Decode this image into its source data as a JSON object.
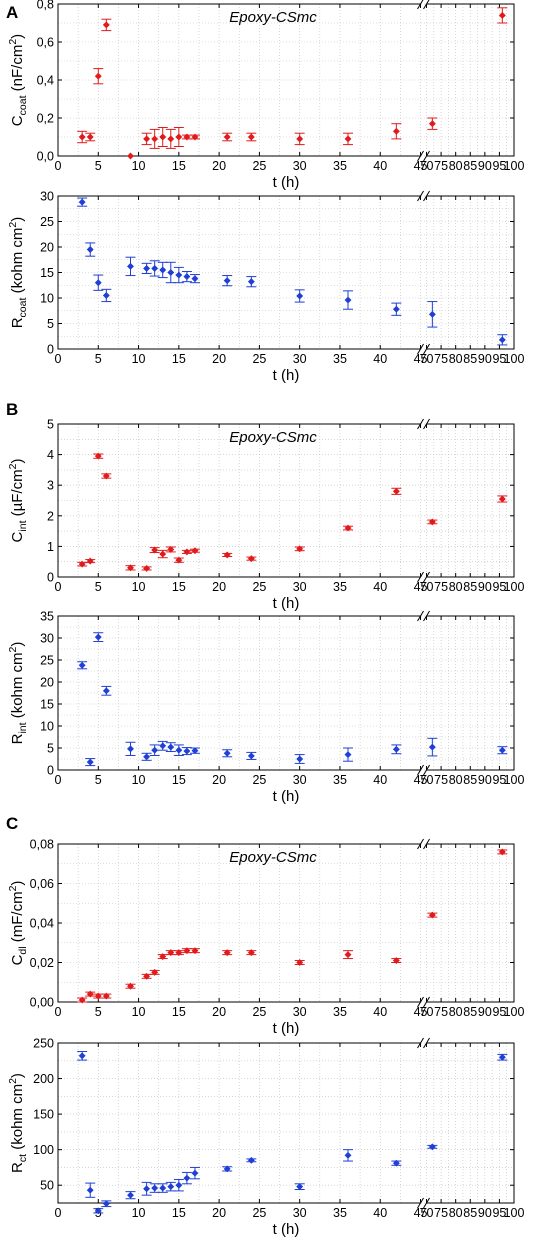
{
  "figure": {
    "panels": [
      {
        "letter": "A"
      },
      {
        "letter": "B"
      },
      {
        "letter": "C"
      }
    ]
  },
  "colors": {
    "red": "#e31a1c",
    "blue": "#1f3fd6",
    "grid": "#bfbfbf"
  },
  "chart_data": [
    {
      "type": "scatter",
      "panel": "A",
      "position": "top",
      "title": "",
      "annotation": "Epoxy-CSmc",
      "xlabel": "t (h)",
      "ylabel": "C_coat (nF/cm²)",
      "ylabel_parts": {
        "main": "C",
        "sub": "coat",
        "rest": " (nF/cm",
        "sup": "2",
        "end": ")"
      },
      "xlim": [
        0,
        100
      ],
      "x_break": [
        45,
        70
      ],
      "ylim": [
        0,
        0.8
      ],
      "xticks": [
        "0",
        "5",
        "10",
        "15",
        "20",
        "25",
        "30",
        "35",
        "40",
        "45",
        "70",
        "75",
        "80",
        "85",
        "90",
        "95",
        "100"
      ],
      "yticks": [
        "0,0",
        "0,2",
        "0,4",
        "0,6",
        "0,8"
      ],
      "series": [
        {
          "color": "red",
          "marker": "diamond",
          "x": [
            3,
            4,
            5,
            6,
            9,
            11,
            12,
            13,
            14,
            15,
            16,
            17,
            21,
            24,
            30,
            36,
            42,
            72,
            96
          ],
          "y": [
            0.1,
            0.1,
            0.42,
            0.69,
            0.0,
            0.09,
            0.09,
            0.1,
            0.09,
            0.1,
            0.1,
            0.1,
            0.1,
            0.1,
            0.09,
            0.09,
            0.13,
            0.17,
            0.74
          ],
          "err": [
            0.03,
            0.02,
            0.04,
            0.03,
            0,
            0.03,
            0.05,
            0.05,
            0.05,
            0.05,
            0.01,
            0.01,
            0.02,
            0.02,
            0.03,
            0.03,
            0.04,
            0.03,
            0.04
          ]
        }
      ]
    },
    {
      "type": "scatter",
      "panel": "A",
      "position": "bottom",
      "title": "",
      "annotation": "",
      "xlabel": "t (h)",
      "ylabel": "R_coat (kohm cm²)",
      "ylabel_parts": {
        "main": "R",
        "sub": "coat",
        "rest": " (kohm cm",
        "sup": "2",
        "end": ")"
      },
      "xlim": [
        0,
        100
      ],
      "x_break": [
        45,
        70
      ],
      "ylim": [
        0,
        30
      ],
      "xticks": [
        "0",
        "5",
        "10",
        "15",
        "20",
        "25",
        "30",
        "35",
        "40",
        "45",
        "70",
        "75",
        "80",
        "85",
        "90",
        "95",
        "100"
      ],
      "yticks": [
        "0",
        "5",
        "10",
        "15",
        "20",
        "25",
        "30"
      ],
      "series": [
        {
          "color": "blue",
          "marker": "diamond",
          "x": [
            3,
            4,
            5,
            6,
            9,
            11,
            12,
            13,
            14,
            15,
            16,
            17,
            21,
            24,
            30,
            36,
            42,
            72,
            96
          ],
          "y": [
            28.8,
            19.5,
            13.0,
            10.5,
            16.2,
            15.8,
            15.8,
            15.5,
            15.0,
            14.5,
            14.2,
            13.8,
            13.4,
            13.2,
            10.4,
            9.6,
            7.8,
            6.8,
            1.8
          ],
          "err": [
            0.8,
            1.3,
            1.5,
            1.2,
            1.8,
            1.0,
            1.5,
            1.5,
            2.0,
            1.5,
            1.0,
            0.8,
            1.0,
            1.0,
            1.2,
            1.8,
            1.2,
            2.5,
            1.0
          ]
        }
      ]
    },
    {
      "type": "scatter",
      "panel": "B",
      "position": "top",
      "title": "",
      "annotation": "Epoxy-CSmc",
      "xlabel": "t (h)",
      "ylabel": "C_int (µF/cm²)",
      "ylabel_parts": {
        "main": "C",
        "sub": "int",
        "rest": " (µF/cm",
        "sup": "2",
        "end": ")"
      },
      "xlim": [
        0,
        100
      ],
      "x_break": [
        45,
        70
      ],
      "ylim": [
        0,
        5
      ],
      "xticks": [
        "0",
        "5",
        "10",
        "15",
        "20",
        "25",
        "30",
        "35",
        "40",
        "45",
        "70",
        "75",
        "80",
        "85",
        "90",
        "95",
        "100"
      ],
      "yticks": [
        "0",
        "1",
        "2",
        "3",
        "4",
        "5"
      ],
      "series": [
        {
          "color": "red",
          "marker": "diamond",
          "x": [
            3,
            4,
            5,
            6,
            9,
            11,
            12,
            13,
            14,
            15,
            16,
            17,
            21,
            24,
            30,
            36,
            42,
            72,
            96
          ],
          "y": [
            0.42,
            0.52,
            3.95,
            3.3,
            0.3,
            0.28,
            0.88,
            0.75,
            0.9,
            0.55,
            0.82,
            0.86,
            0.72,
            0.6,
            0.92,
            1.6,
            2.8,
            1.8,
            2.55
          ],
          "err": [
            0.06,
            0.05,
            0.07,
            0.07,
            0.07,
            0.05,
            0.08,
            0.12,
            0.08,
            0.07,
            0.05,
            0.05,
            0.05,
            0.05,
            0.06,
            0.06,
            0.1,
            0.06,
            0.1
          ]
        }
      ]
    },
    {
      "type": "scatter",
      "panel": "B",
      "position": "bottom",
      "title": "",
      "annotation": "",
      "xlabel": "t (h)",
      "ylabel": "R_int (kohm cm²)",
      "ylabel_parts": {
        "main": "R",
        "sub": "int",
        "rest": " (kohm cm",
        "sup": "2",
        "end": ")"
      },
      "xlim": [
        0,
        100
      ],
      "x_break": [
        45,
        70
      ],
      "ylim": [
        0,
        35
      ],
      "xticks": [
        "0",
        "5",
        "10",
        "15",
        "20",
        "25",
        "30",
        "35",
        "40",
        "45",
        "70",
        "75",
        "80",
        "85",
        "90",
        "95",
        "100"
      ],
      "yticks": [
        "0",
        "5",
        "10",
        "15",
        "20",
        "25",
        "30",
        "35"
      ],
      "series": [
        {
          "color": "blue",
          "marker": "diamond",
          "x": [
            3,
            4,
            5,
            6,
            9,
            11,
            12,
            13,
            14,
            15,
            16,
            17,
            21,
            24,
            30,
            36,
            42,
            72,
            96
          ],
          "y": [
            23.8,
            1.8,
            30.2,
            18.0,
            4.8,
            3.0,
            4.5,
            5.5,
            5.2,
            4.5,
            4.3,
            4.4,
            3.8,
            3.2,
            2.5,
            3.5,
            4.7,
            5.2,
            4.5
          ],
          "err": [
            0.8,
            0.8,
            1.0,
            1.0,
            1.5,
            0.8,
            1.2,
            1.0,
            1.0,
            1.2,
            0.8,
            0.6,
            0.8,
            0.8,
            1.0,
            1.5,
            1.0,
            2.0,
            0.8
          ]
        }
      ]
    },
    {
      "type": "scatter",
      "panel": "C",
      "position": "top",
      "title": "",
      "annotation": "Epoxy-CSmc",
      "xlabel": "t (h)",
      "ylabel": "C_dl (mF/cm²)",
      "ylabel_parts": {
        "main": "C",
        "sub": "dl",
        "rest": " (mF/cm",
        "sup": "2",
        "end": ")"
      },
      "xlim": [
        0,
        100
      ],
      "x_break": [
        45,
        70
      ],
      "ylim": [
        0,
        0.08
      ],
      "xticks": [
        "0",
        "5",
        "10",
        "15",
        "20",
        "25",
        "30",
        "35",
        "40",
        "45",
        "70",
        "75",
        "80",
        "85",
        "90",
        "95",
        "100"
      ],
      "yticks": [
        "0,00",
        "0,02",
        "0,04",
        "0,06",
        "0,08"
      ],
      "series": [
        {
          "color": "red",
          "marker": "diamond",
          "x": [
            3,
            4,
            5,
            6,
            9,
            11,
            12,
            13,
            14,
            15,
            16,
            17,
            21,
            24,
            30,
            36,
            42,
            72,
            96
          ],
          "y": [
            0.001,
            0.004,
            0.003,
            0.003,
            0.008,
            0.013,
            0.015,
            0.023,
            0.025,
            0.025,
            0.026,
            0.026,
            0.025,
            0.025,
            0.02,
            0.024,
            0.021,
            0.044,
            0.076
          ],
          "err": [
            0.001,
            0.001,
            0.001,
            0.001,
            0.001,
            0.001,
            0.001,
            0.001,
            0.001,
            0.001,
            0.001,
            0.001,
            0.001,
            0.001,
            0.001,
            0.002,
            0.001,
            0.001,
            0.001
          ]
        }
      ]
    },
    {
      "type": "scatter",
      "panel": "C",
      "position": "bottom",
      "title": "",
      "annotation": "",
      "xlabel": "t (h)",
      "ylabel": "R_ct (kohm cm²)",
      "ylabel_parts": {
        "main": "R",
        "sub": "ct",
        "rest": " (kohm cm",
        "sup": "2",
        "end": ")"
      },
      "xlim": [
        0,
        100
      ],
      "x_break": [
        45,
        70
      ],
      "ylim": [
        0,
        250
      ],
      "ylim_visible": [
        25,
        250
      ],
      "xticks": [
        "0",
        "5",
        "10",
        "15",
        "20",
        "25",
        "30",
        "35",
        "40",
        "45",
        "70",
        "75",
        "80",
        "85",
        "90",
        "95",
        "100"
      ],
      "yticks": [
        "50",
        "100",
        "150",
        "200",
        "250"
      ],
      "series": [
        {
          "color": "blue",
          "marker": "diamond",
          "x": [
            3,
            4,
            5,
            6,
            9,
            11,
            12,
            13,
            14,
            15,
            16,
            17,
            21,
            24,
            30,
            36,
            42,
            72,
            96
          ],
          "y": [
            232,
            43,
            14,
            24,
            36,
            45,
            46,
            46,
            48,
            50,
            60,
            67,
            73,
            85,
            48,
            92,
            81,
            104,
            230
          ],
          "err": [
            6,
            10,
            3,
            4,
            5,
            9,
            6,
            6,
            6,
            8,
            8,
            8,
            3,
            2,
            4,
            8,
            3,
            2,
            4
          ]
        }
      ]
    }
  ]
}
